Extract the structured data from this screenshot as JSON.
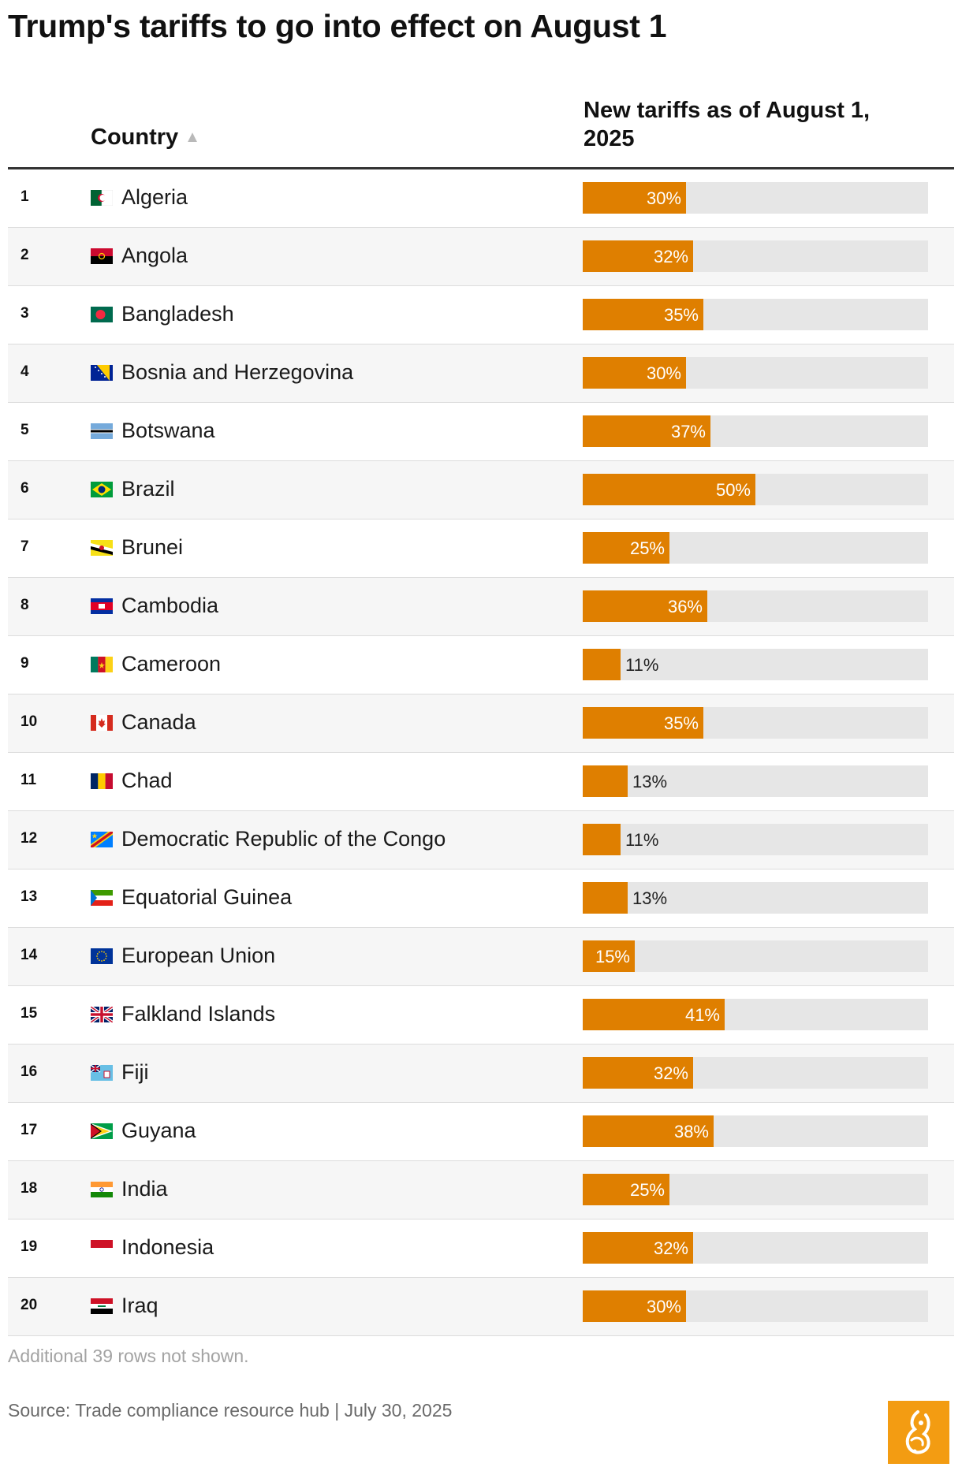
{
  "title": "Trump's tariffs to go into effect on August 1",
  "header": {
    "country_label": "Country",
    "sort_icon": "triangle-up-icon",
    "value_label": "New tariffs as of August 1, 2025"
  },
  "chart_data": {
    "type": "bar",
    "orientation": "horizontal",
    "title": "Trump's tariffs to go into effect on August 1",
    "xlabel": "New tariffs as of August 1, 2025",
    "ylabel": "Country",
    "xlim": [
      0,
      100
    ],
    "unit": "%",
    "bar_color": "#df7f00",
    "track_color": "#e6e6e6",
    "categories": [
      "Algeria",
      "Angola",
      "Bangladesh",
      "Bosnia and Herzegovina",
      "Botswana",
      "Brazil",
      "Brunei",
      "Cambodia",
      "Cameroon",
      "Canada",
      "Chad",
      "Democratic Republic of the Congo",
      "Equatorial Guinea",
      "European Union",
      "Falkland Islands",
      "Fiji",
      "Guyana",
      "India",
      "Indonesia",
      "Iraq"
    ],
    "values": [
      30,
      32,
      35,
      30,
      37,
      50,
      25,
      36,
      11,
      35,
      13,
      11,
      13,
      15,
      41,
      32,
      38,
      25,
      32,
      30
    ],
    "rows": [
      {
        "rank": "1",
        "country": "Algeria",
        "flag": "algeria-flag-icon",
        "value": 30,
        "label": "30%"
      },
      {
        "rank": "2",
        "country": "Angola",
        "flag": "angola-flag-icon",
        "value": 32,
        "label": "32%"
      },
      {
        "rank": "3",
        "country": "Bangladesh",
        "flag": "bangladesh-flag-icon",
        "value": 35,
        "label": "35%"
      },
      {
        "rank": "4",
        "country": "Bosnia and Herzegovina",
        "flag": "bosnia-flag-icon",
        "value": 30,
        "label": "30%"
      },
      {
        "rank": "5",
        "country": "Botswana",
        "flag": "botswana-flag-icon",
        "value": 37,
        "label": "37%"
      },
      {
        "rank": "6",
        "country": "Brazil",
        "flag": "brazil-flag-icon",
        "value": 50,
        "label": "50%"
      },
      {
        "rank": "7",
        "country": "Brunei",
        "flag": "brunei-flag-icon",
        "value": 25,
        "label": "25%"
      },
      {
        "rank": "8",
        "country": "Cambodia",
        "flag": "cambodia-flag-icon",
        "value": 36,
        "label": "36%"
      },
      {
        "rank": "9",
        "country": "Cameroon",
        "flag": "cameroon-flag-icon",
        "value": 11,
        "label": "11%"
      },
      {
        "rank": "10",
        "country": "Canada",
        "flag": "canada-flag-icon",
        "value": 35,
        "label": "35%"
      },
      {
        "rank": "11",
        "country": "Chad",
        "flag": "chad-flag-icon",
        "value": 13,
        "label": "13%"
      },
      {
        "rank": "12",
        "country": "Democratic Republic of the Congo",
        "flag": "drc-flag-icon",
        "value": 11,
        "label": "11%"
      },
      {
        "rank": "13",
        "country": "Equatorial Guinea",
        "flag": "equatorial-guinea-flag-icon",
        "value": 13,
        "label": "13%"
      },
      {
        "rank": "14",
        "country": "European Union",
        "flag": "eu-flag-icon",
        "value": 15,
        "label": "15%"
      },
      {
        "rank": "15",
        "country": "Falkland Islands",
        "flag": "uk-flag-icon",
        "value": 41,
        "label": "41%"
      },
      {
        "rank": "16",
        "country": "Fiji",
        "flag": "fiji-flag-icon",
        "value": 32,
        "label": "32%"
      },
      {
        "rank": "17",
        "country": "Guyana",
        "flag": "guyana-flag-icon",
        "value": 38,
        "label": "38%"
      },
      {
        "rank": "18",
        "country": "India",
        "flag": "india-flag-icon",
        "value": 25,
        "label": "25%"
      },
      {
        "rank": "19",
        "country": "Indonesia",
        "flag": "indonesia-flag-icon",
        "value": 32,
        "label": "32%"
      },
      {
        "rank": "20",
        "country": "Iraq",
        "flag": "iraq-flag-icon",
        "value": 30,
        "label": "30%"
      }
    ]
  },
  "footer": {
    "note": "Additional 39 rows not shown.",
    "source": "Source: Trade compliance resource hub | July 30, 2025",
    "logo": "al-jazeera-logo-icon"
  }
}
